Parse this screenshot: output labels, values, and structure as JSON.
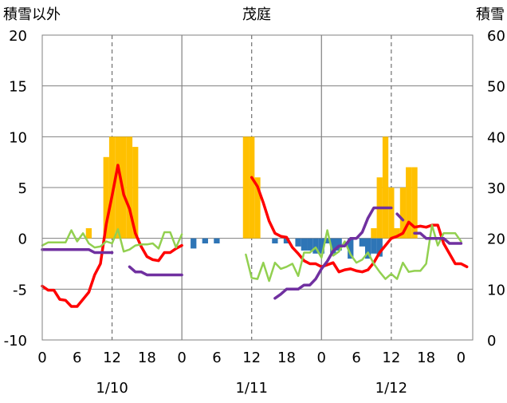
{
  "chart_data": {
    "type": "bar+line",
    "title": "茂庭",
    "left_axis_label": "積雪以外",
    "right_axis_label": "積雪",
    "left_axis": {
      "min": -10,
      "max": 20,
      "ticks": [
        -10,
        -5,
        0,
        5,
        10,
        15,
        20
      ],
      "tick_labels": [
        "-10",
        "-5",
        "0",
        "5",
        "10",
        "15",
        "20"
      ]
    },
    "right_axis": {
      "min": 0,
      "max": 60,
      "ticks": [
        0,
        10,
        20,
        30,
        40,
        50,
        60
      ],
      "tick_labels": [
        "0",
        "10",
        "20",
        "30",
        "40",
        "50",
        "60"
      ]
    },
    "x_axis": {
      "hour_ticks": [
        0,
        6,
        12,
        18,
        24,
        30,
        36,
        42,
        48,
        54,
        60,
        66,
        72
      ],
      "hour_labels": [
        "0",
        "6",
        "12",
        "18",
        "0",
        "6",
        "12",
        "18",
        "0",
        "6",
        "12",
        "18",
        "0"
      ],
      "date_labels": [
        {
          "hour": 12,
          "text": "1/10"
        },
        {
          "hour": 36,
          "text": "1/11"
        },
        {
          "hour": 60,
          "text": "1/12"
        }
      ],
      "day_boundaries": [
        24,
        48
      ],
      "dashed_lines": [
        12,
        36,
        60
      ]
    },
    "series": [
      {
        "kind": "bar",
        "axis": "left",
        "color": "#FFC000",
        "values": [
          [
            8,
            1
          ],
          [
            11,
            8
          ],
          [
            12,
            10
          ],
          [
            13,
            10
          ],
          [
            14,
            10
          ],
          [
            15,
            10
          ],
          [
            16,
            9
          ],
          [
            35,
            10
          ],
          [
            36,
            10
          ],
          [
            37,
            6
          ],
          [
            57,
            1
          ],
          [
            58,
            6
          ],
          [
            59,
            10
          ],
          [
            60,
            5
          ],
          [
            61,
            1
          ],
          [
            62,
            5
          ],
          [
            63,
            7
          ],
          [
            64,
            7
          ]
        ]
      },
      {
        "kind": "bar",
        "axis": "left",
        "color": "#2E75B6",
        "values": [
          [
            26,
            -1
          ],
          [
            28,
            -0.5
          ],
          [
            30,
            -0.5
          ],
          [
            40,
            -0.5
          ],
          [
            42,
            -0.5
          ],
          [
            44,
            -0.8
          ],
          [
            45,
            -1.2
          ],
          [
            46,
            -1.2
          ],
          [
            47,
            -1.5
          ],
          [
            48,
            -1.5
          ],
          [
            49,
            -0.5
          ],
          [
            50,
            -1.5
          ],
          [
            51,
            -1.2
          ],
          [
            53,
            -2
          ],
          [
            55,
            -0.8
          ],
          [
            56,
            -2
          ],
          [
            57,
            -1.5
          ],
          [
            58,
            -1.8
          ]
        ]
      },
      {
        "kind": "line",
        "axis": "left",
        "color": "#FF0000",
        "segments": [
          [
            [
              0,
              -4.7
            ],
            [
              1,
              -5.1
            ],
            [
              2,
              -5.1
            ],
            [
              3,
              -6
            ],
            [
              4,
              -6.1
            ],
            [
              5,
              -6.7
            ],
            [
              6,
              -6.7
            ],
            [
              7,
              -6
            ],
            [
              8,
              -5.3
            ],
            [
              9,
              -3.6
            ],
            [
              10,
              -2.5
            ],
            [
              11,
              1.4
            ],
            [
              12,
              4.2
            ],
            [
              13,
              7.2
            ],
            [
              14,
              4.3
            ],
            [
              15,
              2.9
            ],
            [
              16,
              0.5
            ],
            [
              17,
              -0.8
            ],
            [
              18,
              -1.8
            ],
            [
              19,
              -2.1
            ],
            [
              20,
              -2.2
            ],
            [
              21,
              -1.4
            ],
            [
              22,
              -1.4
            ],
            [
              23,
              -1
            ],
            [
              24,
              -0.7
            ]
          ],
          [
            [
              36,
              6
            ],
            [
              37,
              5.1
            ],
            [
              38,
              3.5
            ],
            [
              39,
              1.7
            ],
            [
              40,
              0.5
            ],
            [
              41,
              0.2
            ],
            [
              42,
              0.1
            ],
            [
              43,
              -0.9
            ],
            [
              44,
              -1.5
            ],
            [
              45,
              -2.2
            ],
            [
              46,
              -2.5
            ],
            [
              47,
              -2.5
            ],
            [
              48,
              -2.8
            ],
            [
              49,
              -2.6
            ],
            [
              50,
              -2.4
            ],
            [
              51,
              -3.3
            ],
            [
              52,
              -3.1
            ],
            [
              53,
              -3
            ],
            [
              54,
              -3.2
            ],
            [
              55,
              -3.3
            ],
            [
              56,
              -3.1
            ],
            [
              57,
              -2.4
            ],
            [
              58,
              -1.4
            ],
            [
              59,
              -0.7
            ],
            [
              60,
              0
            ],
            [
              61,
              0.2
            ],
            [
              62,
              0.5
            ],
            [
              63,
              1.6
            ],
            [
              64,
              1.1
            ],
            [
              65,
              1.2
            ],
            [
              66,
              1.1
            ],
            [
              67,
              1.3
            ],
            [
              68,
              1.3
            ],
            [
              69,
              -0.5
            ],
            [
              70,
              -1.5
            ],
            [
              71,
              -2.5
            ],
            [
              72,
              -2.5
            ],
            [
              73,
              -2.8
            ]
          ]
        ]
      },
      {
        "kind": "line",
        "axis": "left",
        "color": "#92D050",
        "segments": [
          [
            [
              0,
              -0.7
            ],
            [
              1,
              -0.4
            ],
            [
              2,
              -0.4
            ],
            [
              3,
              -0.4
            ],
            [
              4,
              -0.4
            ],
            [
              5,
              0.8
            ],
            [
              6,
              -0.3
            ],
            [
              7,
              0.5
            ],
            [
              8,
              -0.5
            ],
            [
              9,
              -0.9
            ],
            [
              10,
              -0.8
            ],
            [
              11,
              -0.3
            ],
            [
              12,
              -0.5
            ],
            [
              13,
              0.9
            ],
            [
              14,
              -1.3
            ],
            [
              15,
              -1.1
            ],
            [
              16,
              -0.7
            ],
            [
              17,
              -0.6
            ],
            [
              18,
              -0.6
            ],
            [
              19,
              -0.5
            ],
            [
              20,
              -1
            ],
            [
              21,
              0.6
            ],
            [
              22,
              0.6
            ],
            [
              23,
              -0.9
            ],
            [
              24,
              0.4
            ]
          ],
          [
            [
              35,
              -1.6
            ],
            [
              36,
              -3.9
            ],
            [
              37,
              -4
            ],
            [
              38,
              -2.4
            ],
            [
              39,
              -4.2
            ],
            [
              40,
              -2.4
            ],
            [
              41,
              -3
            ],
            [
              42,
              -2.8
            ],
            [
              43,
              -2.5
            ],
            [
              44,
              -3.7
            ],
            [
              45,
              -1.4
            ],
            [
              46,
              -1.4
            ],
            [
              47,
              -0.9
            ],
            [
              48,
              -1.9
            ],
            [
              49,
              0.8
            ],
            [
              50,
              -1.7
            ],
            [
              51,
              -1.3
            ],
            [
              52,
              -0.3
            ],
            [
              53,
              -1.6
            ],
            [
              54,
              -2.4
            ],
            [
              55,
              -2.1
            ],
            [
              56,
              -1.4
            ],
            [
              57,
              -2.5
            ],
            [
              58,
              -3.3
            ],
            [
              59,
              -4
            ],
            [
              60,
              -3.5
            ],
            [
              61,
              -4
            ],
            [
              62,
              -2.4
            ],
            [
              63,
              -3.3
            ],
            [
              64,
              -3.2
            ],
            [
              65,
              -3.2
            ],
            [
              66,
              -2.5
            ],
            [
              67,
              1.3
            ],
            [
              68,
              -0.7
            ],
            [
              69,
              0.5
            ],
            [
              70,
              0.5
            ],
            [
              71,
              0.5
            ],
            [
              72,
              -0.3
            ]
          ]
        ]
      },
      {
        "kind": "line",
        "axis": "right",
        "color": "#7030A0",
        "segments": [
          [
            [
              0,
              17.8
            ],
            [
              6,
              17.8
            ],
            [
              8,
              17.8
            ],
            [
              9,
              17.2
            ],
            [
              10,
              17.2
            ],
            [
              11,
              17.2
            ],
            [
              12,
              17.2
            ]
          ],
          [
            [
              15,
              14.4
            ],
            [
              16,
              13.4
            ],
            [
              17,
              13.4
            ],
            [
              18,
              12.8
            ],
            [
              19,
              12.8
            ],
            [
              20,
              12.8
            ],
            [
              21,
              12.8
            ],
            [
              22,
              12.8
            ],
            [
              23,
              12.8
            ],
            [
              24,
              12.8
            ]
          ],
          [
            [
              40,
              8.2
            ],
            [
              41,
              9
            ],
            [
              42,
              10
            ],
            [
              43,
              10
            ],
            [
              44,
              10
            ],
            [
              45,
              10.8
            ],
            [
              46,
              10.8
            ],
            [
              47,
              12
            ],
            [
              48,
              14
            ],
            [
              49,
              15.5
            ],
            [
              50,
              17.5
            ],
            [
              51,
              18.5
            ],
            [
              52,
              18.5
            ],
            [
              53,
              20
            ],
            [
              54,
              20
            ],
            [
              55,
              21.2
            ],
            [
              56,
              24
            ],
            [
              57,
              26
            ],
            [
              58,
              26
            ],
            [
              59,
              26
            ],
            [
              60,
              26
            ]
          ],
          [
            [
              61,
              24.8
            ],
            [
              62,
              23.6
            ]
          ],
          [
            [
              64,
              21
            ],
            [
              65,
              21
            ],
            [
              66,
              20
            ],
            [
              67,
              20
            ],
            [
              68,
              20
            ],
            [
              69,
              20
            ],
            [
              70,
              19
            ],
            [
              71,
              19
            ],
            [
              72,
              19
            ]
          ]
        ]
      }
    ]
  }
}
